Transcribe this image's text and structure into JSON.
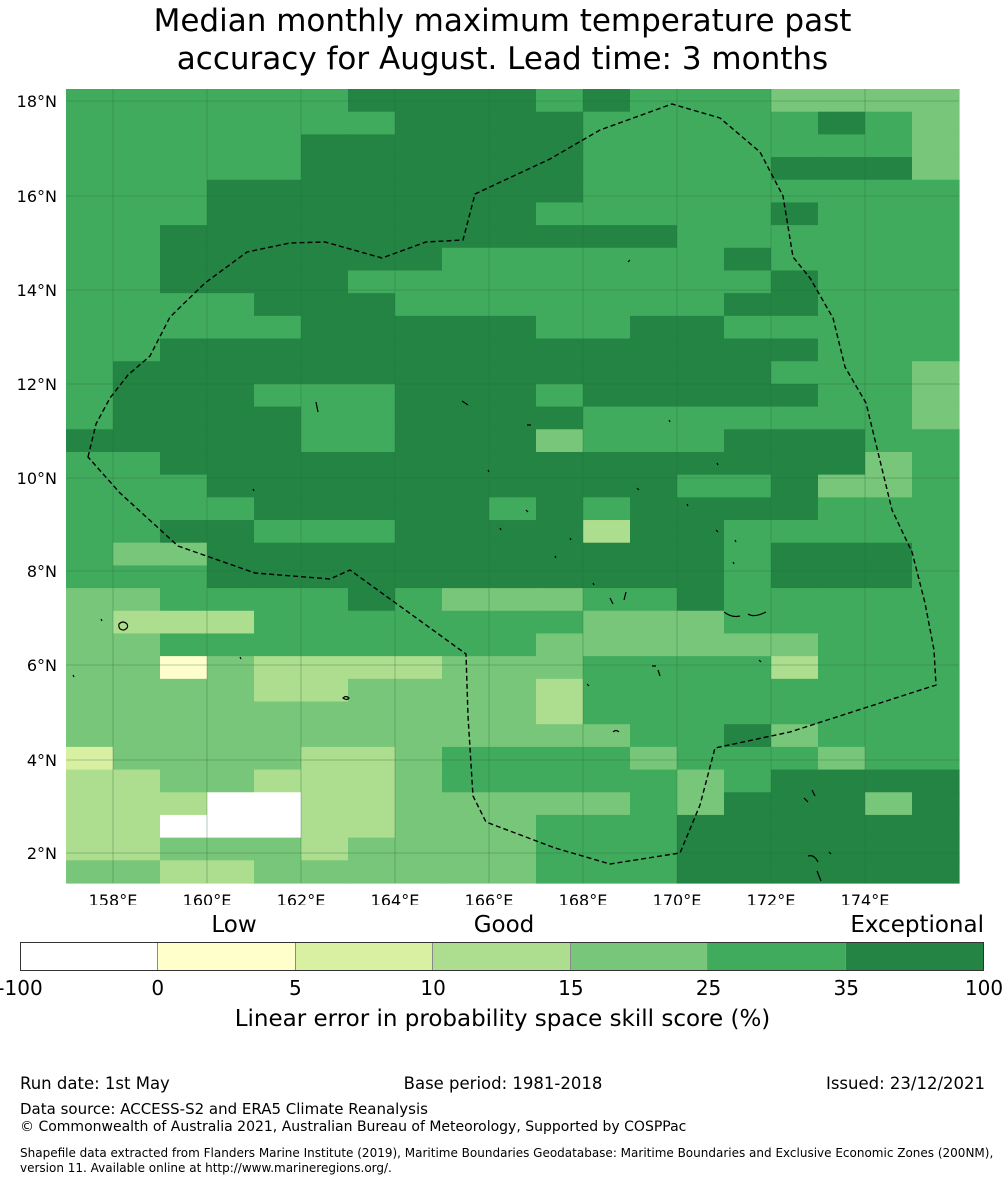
{
  "title_line1": "Median monthly maximum temperature past",
  "title_line2": "accuracy for August. Lead time: 3 months",
  "map": {
    "lat_labels": [
      "18°N",
      "16°N",
      "14°N",
      "12°N",
      "10°N",
      "8°N",
      "6°N",
      "4°N",
      "2°N"
    ],
    "lon_labels": [
      "158°E",
      "160°E",
      "162°E",
      "164°E",
      "166°E",
      "168°E",
      "170°E",
      "172°E",
      "174°E"
    ],
    "eez_boundary": "dashed black line",
    "coastline_color": "#000000"
  },
  "legend": {
    "category_labels": {
      "low": "Low",
      "good": "Good",
      "exceptional": "Exceptional"
    },
    "bins": [
      {
        "from": -100,
        "to": 0,
        "color": "#ffffff"
      },
      {
        "from": 0,
        "to": 5,
        "color": "#ffffcc"
      },
      {
        "from": 5,
        "to": 10,
        "color": "#d9f0a3"
      },
      {
        "from": 10,
        "to": 15,
        "color": "#addd8e"
      },
      {
        "from": 15,
        "to": 25,
        "color": "#78c679"
      },
      {
        "from": 25,
        "to": 35,
        "color": "#41ab5d"
      },
      {
        "from": 35,
        "to": 100,
        "color": "#238443"
      }
    ],
    "tick_labels": [
      "-100",
      "0",
      "5",
      "10",
      "15",
      "25",
      "35",
      "100"
    ],
    "axis_label": "Linear error in probability space skill score (%)"
  },
  "footer": {
    "run_date": "Run date: 1st May",
    "base_period": "Base period: 1981-2018",
    "issued": "Issued: 23/12/2021",
    "data_source": "Data source: ACCESS-S2 and ERA5 Climate Reanalysis",
    "copyright": "© Commonwealth of Australia 2021, Australian Bureau of Meteorology, Supported by COSPPac",
    "shapefile_line1": "Shapefile data extracted from Flanders Marine Institute (2019), Maritime Boundaries Geodatabase: Maritime Boundaries and Exclusive Economic Zones (200NM),",
    "shapefile_line2": "version 11. Available online at http://www.marineregions.org/."
  },
  "grid_classes": [
    "5555556666565554444",
    "5555555666655555654",
    "5555566666655555554",
    "5555566666655556664",
    "5556666666655555555",
    "5556666666555556555",
    "5566666666666555555",
    "5566666655555565555",
    "5566665555555556555",
    "5555666555555566555",
    "5555566666556655555",
    "5566666666666666555",
    "5666666666666665554",
    "5666555666566666554",
    "5666655666655555554",
    "6666655666455566655",
    "5566666666666666645",
    "5556666666666556445",
    "5555666665656666555",
    "5566555666636655555",
    "5446666666666656665",
    "5556666666666656665",
    "4455556544455655555",
    "4333555555544455555",
    "4455555555444444555",
    "4414333344455553555",
    "4444334444355555555",
    "4444444444355555555",
    "4444444444445564555",
    "2444433455554555455",
    "3344333455555456666",
    "3330033444445466646",
    "3300033444555666666",
    "3344434444555666666",
    "4433444444555666666"
  ]
}
